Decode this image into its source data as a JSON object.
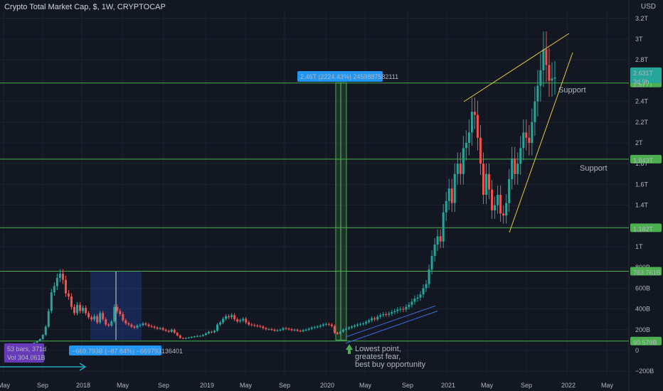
{
  "header": {
    "title": "Crypto Total Market Cap, $, 1W, CRYPTOCAP",
    "currency": "USD"
  },
  "colors": {
    "bg": "#131722",
    "up": "#26a69a",
    "down": "#ef5350",
    "hline": "#4caf50",
    "trend": "#e2c841",
    "channel": "#3f6ad8",
    "label_green": "#4caf50"
  },
  "chart_data": {
    "type": "candlestick",
    "x_ticks": [
      "May",
      "Sep",
      "2018",
      "May",
      "Sep",
      "2019",
      "May",
      "Sep",
      "2020",
      "May",
      "Sep",
      "2021",
      "May",
      "Sep",
      "2022",
      "May"
    ],
    "y_ticks": [
      "3.2T",
      "3T",
      "2.8T",
      "2.6T",
      "2.4T",
      "2.2T",
      "2T",
      "1.8T",
      "1.6T",
      "1.4T",
      "1.2T",
      "1T",
      "800B",
      "600B",
      "400B",
      "200B",
      "0",
      "−200B"
    ],
    "ylim": [
      -200,
      3200
    ],
    "y_unit": "B",
    "support_levels": [
      {
        "value": 2577,
        "label": "2.577T"
      },
      {
        "value": 1843,
        "label": "1.843T"
      },
      {
        "value": 1182,
        "label": "1.182T"
      },
      {
        "value": 763.761,
        "label": "763.761B"
      },
      {
        "value": 90.579,
        "label": "90.579B"
      }
    ],
    "current_price": {
      "value": 2631,
      "label": "2.631T",
      "countdown": "3d 9h"
    },
    "annotations": {
      "drop_measure": "−669.793B (−87.84%) −669793136401",
      "rise_measure": "2.46T (2224.43%) 2459887582111",
      "bars_info": [
        "53 bars, 371d",
        "Vol 304.061B"
      ],
      "support_1": "Support",
      "support_2": "Support",
      "note": [
        "Lowest point,",
        "greatest fear,",
        "best buy opportunity"
      ]
    },
    "series": [
      {
        "name": "",
        "closes": [
          20,
          22,
          25,
          28,
          33,
          38,
          45,
          55,
          62,
          75,
          90,
          110,
          150,
          230,
          380,
          560,
          620,
          700,
          740,
          680,
          550,
          520,
          420,
          360,
          440,
          380,
          410,
          360,
          320,
          300,
          330,
          270,
          360,
          300,
          250,
          240,
          280,
          420,
          380,
          350,
          290,
          260,
          250,
          230,
          220,
          240,
          245,
          260,
          250,
          235,
          230,
          220,
          210,
          215,
          200,
          190,
          180,
          200,
          170,
          145,
          120,
          115,
          120,
          125,
          130,
          135,
          140,
          140,
          150,
          165,
          180,
          175,
          190,
          250,
          270,
          305,
          330,
          320,
          340,
          300,
          280,
          290,
          305,
          270,
          250,
          245,
          240,
          235,
          230,
          215,
          205,
          205,
          200,
          190,
          195,
          200,
          215,
          210,
          205,
          195,
          200,
          190,
          185,
          195,
          200,
          210,
          220,
          225,
          230,
          240,
          250,
          255,
          250,
          235,
          170,
          160,
          180,
          200,
          210,
          220,
          230,
          240,
          250,
          255,
          260,
          275,
          290,
          310,
          300,
          325,
          340,
          350,
          345,
          355,
          370,
          380,
          395,
          400,
          395,
          420,
          440,
          470,
          500,
          510,
          540,
          600,
          640,
          780,
          910,
          1020,
          1100,
          1050,
          1330,
          1440,
          1560,
          1420,
          1700,
          1800,
          1700,
          1950,
          2000,
          2100,
          2300,
          2270,
          2050,
          1800,
          1500,
          1700,
          1550,
          1350,
          1400,
          1500,
          1320,
          1300,
          1420,
          1650,
          1850,
          1700,
          1800,
          1950,
          2100,
          2050,
          2000,
          2200,
          2400,
          2550,
          2700,
          2900,
          2750,
          2600,
          2620,
          2631
        ]
      }
    ]
  }
}
